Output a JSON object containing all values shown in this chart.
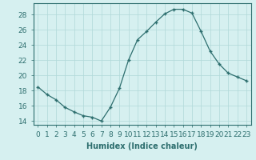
{
  "x": [
    0,
    1,
    2,
    3,
    4,
    5,
    6,
    7,
    8,
    9,
    10,
    11,
    12,
    13,
    14,
    15,
    16,
    17,
    18,
    19,
    20,
    21,
    22,
    23
  ],
  "y": [
    18.5,
    17.5,
    16.8,
    15.8,
    15.2,
    14.7,
    14.5,
    14.0,
    15.8,
    18.3,
    22.0,
    24.7,
    25.8,
    27.0,
    28.1,
    28.7,
    28.7,
    28.2,
    25.8,
    23.2,
    21.5,
    20.3,
    19.8,
    19.3
  ],
  "line_color": "#2d6e6e",
  "marker": "+",
  "marker_color": "#2d6e6e",
  "bg_color": "#d6f0f0",
  "grid_color": "#b0d8d8",
  "xlabel": "Humidex (Indice chaleur)",
  "ylim": [
    13.5,
    29.5
  ],
  "xlim": [
    -0.5,
    23.5
  ],
  "yticks": [
    14,
    16,
    18,
    20,
    22,
    24,
    26,
    28
  ],
  "xticks": [
    0,
    1,
    2,
    3,
    4,
    5,
    6,
    7,
    8,
    9,
    10,
    11,
    12,
    13,
    14,
    15,
    16,
    17,
    18,
    19,
    20,
    21,
    22,
    23
  ],
  "xtick_labels": [
    "0",
    "1",
    "2",
    "3",
    "4",
    "5",
    "6",
    "7",
    "8",
    "9",
    "10",
    "11",
    "12",
    "13",
    "14",
    "15",
    "16",
    "17",
    "18",
    "19",
    "20",
    "21",
    "22",
    "23"
  ],
  "label_fontsize": 7,
  "tick_fontsize": 6.5
}
